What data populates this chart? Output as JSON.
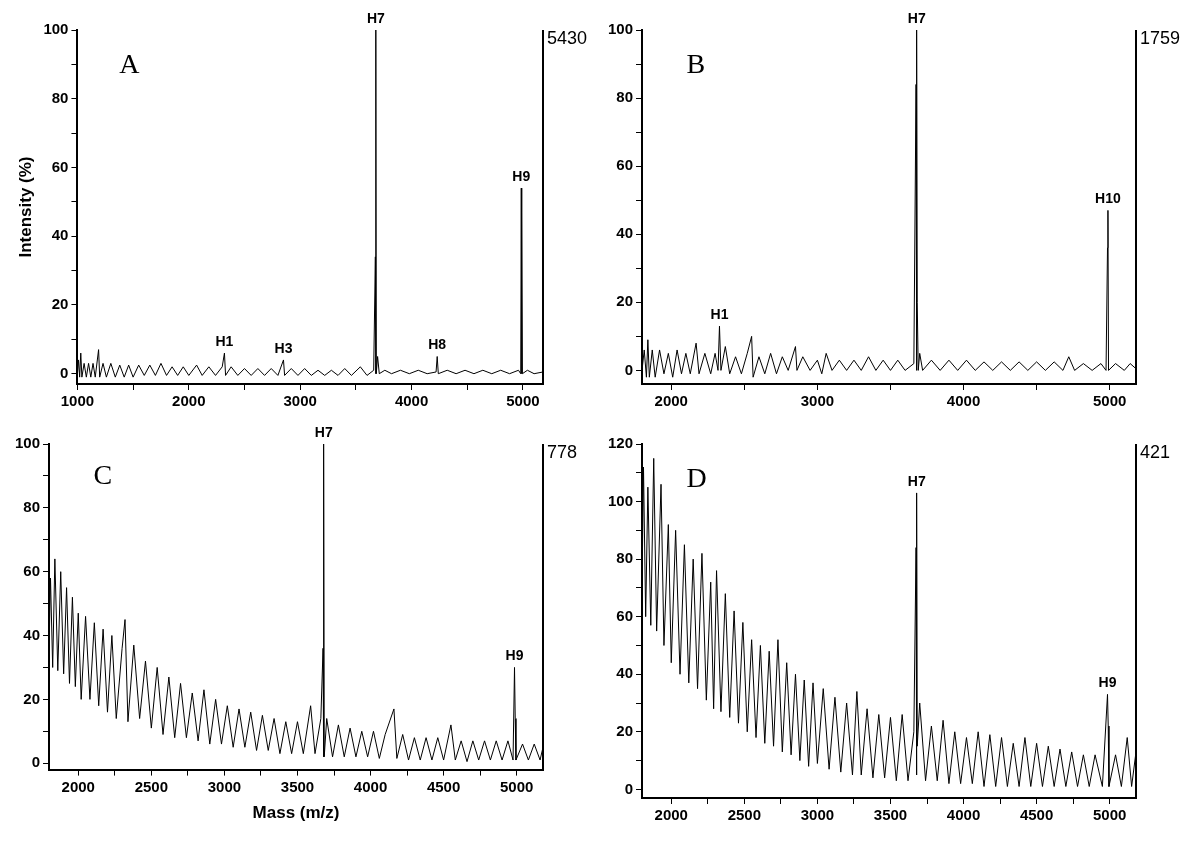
{
  "chart_data": [
    {
      "type": "line",
      "ylabel": "Intensity (%)",
      "annotations": [
        "A",
        "5430",
        {
          "text": "H1",
          "x": 2320,
          "y": 6
        },
        {
          "text": "H3",
          "x": 2850,
          "y": 4
        },
        {
          "text": "H7",
          "x": 3680,
          "y": 100
        },
        {
          "text": "H8",
          "x": 4230,
          "y": 5
        },
        {
          "text": "H9",
          "x": 4985,
          "y": 54
        }
      ],
      "color": "#000000",
      "xlim": [
        1000,
        5180
      ],
      "ylim": [
        -3,
        100
      ],
      "xticks": [
        1000,
        {
          "value": 1500,
          "label": null
        },
        2000,
        {
          "value": 2500,
          "label": null
        },
        3000,
        {
          "value": 3500,
          "label": null
        },
        4000,
        {
          "value": 4500,
          "label": null
        },
        5000
      ],
      "yticks": [
        0,
        {
          "value": 10,
          "label": null
        },
        20,
        {
          "value": 30,
          "label": null
        },
        40,
        {
          "value": 50,
          "label": null
        },
        60,
        {
          "value": 70,
          "label": null
        },
        80,
        {
          "value": 90,
          "label": null
        },
        100
      ],
      "x": [
        1000,
        1010,
        1020,
        1030,
        1040,
        1060,
        1080,
        1100,
        1120,
        1140,
        1160,
        1190,
        1200,
        1230,
        1260,
        1300,
        1340,
        1380,
        1420,
        1460,
        1500,
        1550,
        1600,
        1650,
        1700,
        1750,
        1800,
        1850,
        1900,
        1950,
        2000,
        2070,
        2120,
        2180,
        2240,
        2300,
        2320,
        2330,
        2380,
        2440,
        2500,
        2560,
        2620,
        2680,
        2740,
        2800,
        2850,
        2860,
        2920,
        2980,
        3040,
        3100,
        3160,
        3220,
        3280,
        3340,
        3400,
        3460,
        3540,
        3600,
        3660,
        3675,
        3678,
        3680,
        3683,
        3695,
        3710,
        3760,
        3820,
        3900,
        3980,
        4060,
        4140,
        4220,
        4230,
        4240,
        4320,
        4400,
        4480,
        4560,
        4640,
        4720,
        4800,
        4880,
        4960,
        4980,
        4985,
        4988,
        4990,
        4995,
        5040,
        5100,
        5180
      ],
      "values": [
        0,
        4,
        -1,
        6,
        -1,
        3,
        -1,
        3,
        -1,
        3,
        -1,
        7,
        -1,
        3,
        -1,
        3,
        -1,
        2.5,
        -1,
        2.5,
        -1,
        2.5,
        -0.5,
        2.5,
        -0.5,
        3,
        -0.5,
        2,
        -0.5,
        2,
        -0.5,
        2.5,
        -0.5,
        2,
        -0.5,
        2,
        6,
        -0.5,
        2,
        -0.5,
        1.5,
        -0.5,
        1.5,
        -0.5,
        1.5,
        -0.5,
        4,
        -0.5,
        1.5,
        -0.5,
        1.5,
        -0.5,
        1,
        -0.5,
        1,
        -0.5,
        1.5,
        -0.5,
        2,
        -0.5,
        1,
        34,
        0,
        100,
        0,
        5,
        0,
        1,
        0,
        1,
        0,
        1,
        0,
        0.5,
        5,
        0,
        1,
        0,
        1,
        0,
        1,
        0,
        1,
        0,
        1,
        0,
        54,
        0,
        47,
        0,
        1,
        0,
        0.5
      ]
    },
    {
      "type": "line",
      "annotations": [
        "B",
        "1759",
        {
          "text": "H1",
          "x": 2330,
          "y": 13
        },
        {
          "text": "H7",
          "x": 3680,
          "y": 100
        },
        {
          "text": "H10",
          "x": 4988,
          "y": 47
        }
      ],
      "color": "#000000",
      "xlim": [
        1800,
        5180
      ],
      "ylim": [
        -4,
        100
      ],
      "xticks": [
        2000,
        {
          "value": 2500,
          "label": null
        },
        3000,
        {
          "value": 3500,
          "label": null
        },
        4000,
        {
          "value": 4500,
          "label": null
        },
        5000
      ],
      "yticks": [
        0,
        {
          "value": 10,
          "label": null
        },
        20,
        {
          "value": 30,
          "label": null
        },
        40,
        {
          "value": 50,
          "label": null
        },
        60,
        {
          "value": 70,
          "label": null
        },
        80,
        {
          "value": 90,
          "label": null
        },
        100
      ],
      "x": [
        1800,
        1815,
        1830,
        1840,
        1850,
        1870,
        1890,
        1920,
        1950,
        1980,
        2010,
        2040,
        2070,
        2100,
        2130,
        2170,
        2190,
        2230,
        2270,
        2300,
        2320,
        2330,
        2340,
        2370,
        2400,
        2440,
        2480,
        2520,
        2550,
        2560,
        2600,
        2640,
        2680,
        2720,
        2760,
        2800,
        2850,
        2860,
        2900,
        2950,
        3000,
        3030,
        3060,
        3100,
        3150,
        3200,
        3250,
        3300,
        3350,
        3400,
        3450,
        3500,
        3550,
        3600,
        3660,
        3675,
        3678,
        3680,
        3683,
        3690,
        3700,
        3720,
        3780,
        3840,
        3900,
        3960,
        4020,
        4080,
        4140,
        4200,
        4260,
        4320,
        4380,
        4440,
        4500,
        4560,
        4620,
        4680,
        4720,
        4760,
        4820,
        4880,
        4940,
        4975,
        4985,
        4988,
        4992,
        5040,
        5100,
        5140,
        5180
      ],
      "values": [
        0,
        6,
        -2,
        9,
        -2,
        6,
        -2,
        6,
        -1,
        5,
        -2,
        6,
        -1,
        5,
        -1,
        8,
        -1,
        5,
        -1,
        5,
        0,
        13,
        0,
        7,
        -1,
        4,
        -1,
        5,
        10,
        -2,
        4,
        -1,
        5,
        -1,
        4,
        0,
        7,
        0,
        4,
        0,
        3,
        -1,
        5,
        0,
        3,
        0,
        3,
        0,
        4,
        0,
        3,
        0,
        3,
        0,
        2,
        84,
        0,
        100,
        20,
        0,
        5,
        0,
        3,
        0,
        3,
        0,
        3,
        0,
        2.5,
        0,
        2.5,
        0,
        2.5,
        0,
        2.5,
        0,
        2.5,
        0,
        4,
        0,
        2,
        0,
        2,
        0,
        36,
        47,
        0,
        2,
        0,
        2,
        0.5
      ]
    },
    {
      "type": "line",
      "xlabel": "Mass (m/z)",
      "annotations": [
        "C",
        "778",
        {
          "text": "H7",
          "x": 3680,
          "y": 100
        },
        {
          "text": "H9",
          "x": 4985,
          "y": 30
        }
      ],
      "color": "#000000",
      "xlim": [
        1800,
        5180
      ],
      "ylim": [
        -2,
        100
      ],
      "xticks": [
        2000,
        {
          "value": 2250,
          "label": null
        },
        2500,
        {
          "value": 2750,
          "label": null
        },
        3000,
        {
          "value": 3250,
          "label": null
        },
        3500,
        {
          "value": 3750,
          "label": null
        },
        4000,
        {
          "value": 4250,
          "label": null
        },
        4500,
        {
          "value": 4750,
          "label": null
        },
        5000
      ],
      "yticks": [
        0,
        {
          "value": 10,
          "label": null
        },
        20,
        {
          "value": 30,
          "label": null
        },
        40,
        {
          "value": 50,
          "label": null
        },
        60,
        {
          "value": 70,
          "label": null
        },
        80,
        {
          "value": 90,
          "label": null
        },
        100
      ],
      "x": [
        1800,
        1810,
        1825,
        1840,
        1860,
        1880,
        1900,
        1920,
        1940,
        1960,
        1980,
        2000,
        2020,
        2050,
        2080,
        2110,
        2140,
        2170,
        2200,
        2230,
        2260,
        2300,
        2320,
        2340,
        2380,
        2420,
        2460,
        2500,
        2540,
        2580,
        2620,
        2660,
        2700,
        2740,
        2780,
        2820,
        2860,
        2900,
        2940,
        2980,
        3020,
        3060,
        3100,
        3140,
        3180,
        3220,
        3260,
        3300,
        3340,
        3380,
        3420,
        3460,
        3500,
        3540,
        3590,
        3620,
        3660,
        3675,
        3678,
        3680,
        3683,
        3700,
        3740,
        3780,
        3820,
        3860,
        3900,
        3940,
        3980,
        4020,
        4060,
        4100,
        4160,
        4180,
        4220,
        4260,
        4300,
        4340,
        4380,
        4420,
        4460,
        4500,
        4550,
        4580,
        4620,
        4660,
        4700,
        4740,
        4780,
        4820,
        4860,
        4900,
        4940,
        4975,
        4985,
        4990,
        4995,
        5040,
        5080,
        5120,
        5160,
        5180
      ],
      "values": [
        35,
        58,
        30,
        64,
        29,
        60,
        28,
        55,
        25,
        52,
        24,
        47,
        20,
        46,
        20,
        44,
        18,
        42,
        16,
        40,
        14,
        36,
        45,
        13,
        37,
        14,
        32,
        11,
        30,
        9,
        27,
        8,
        25,
        8,
        22,
        7,
        23,
        6,
        20,
        6,
        18,
        5,
        17,
        5,
        16,
        4,
        15,
        4,
        14,
        3,
        13,
        3,
        13,
        3,
        18,
        3,
        14,
        36,
        2,
        100,
        2,
        14,
        2,
        12,
        2,
        11,
        2,
        10,
        2,
        10,
        1.5,
        9,
        17,
        1.5,
        9,
        1,
        8,
        1,
        8,
        1,
        8,
        1,
        12,
        1,
        7,
        0.5,
        7,
        1,
        7,
        1,
        7,
        1,
        7,
        1,
        30,
        14,
        1,
        6,
        1,
        6,
        1,
        5
      ]
    },
    {
      "type": "line",
      "annotations": [
        "D",
        "421",
        {
          "text": "H7",
          "x": 3680,
          "y": 103
        },
        {
          "text": "H9",
          "x": 4985,
          "y": 33
        }
      ],
      "color": "#000000",
      "xlim": [
        1800,
        5180
      ],
      "ylim": [
        -3,
        120
      ],
      "xticks": [
        2000,
        {
          "value": 2250,
          "label": null
        },
        2500,
        {
          "value": 2750,
          "label": null
        },
        3000,
        {
          "value": 3250,
          "label": null
        },
        3500,
        {
          "value": 3750,
          "label": null
        },
        4000,
        {
          "value": 4250,
          "label": null
        },
        4500,
        {
          "value": 4750,
          "label": null
        },
        5000
      ],
      "yticks": [
        0,
        {
          "value": 10,
          "label": null
        },
        20,
        {
          "value": 30,
          "label": null
        },
        40,
        {
          "value": 50,
          "label": null
        },
        60,
        {
          "value": 70,
          "label": null
        },
        80,
        {
          "value": 90,
          "label": null
        },
        100,
        {
          "value": 110,
          "label": null
        },
        120
      ],
      "x": [
        1800,
        1810,
        1825,
        1840,
        1860,
        1880,
        1900,
        1930,
        1950,
        1980,
        2000,
        2030,
        2060,
        2090,
        2120,
        2150,
        2180,
        2210,
        2240,
        2270,
        2290,
        2310,
        2340,
        2370,
        2400,
        2430,
        2460,
        2490,
        2520,
        2550,
        2580,
        2610,
        2640,
        2670,
        2700,
        2730,
        2760,
        2790,
        2820,
        2850,
        2880,
        2910,
        2940,
        2970,
        3000,
        3040,
        3080,
        3120,
        3160,
        3200,
        3240,
        3270,
        3300,
        3340,
        3380,
        3420,
        3460,
        3500,
        3540,
        3580,
        3620,
        3660,
        3675,
        3678,
        3680,
        3683,
        3700,
        3740,
        3780,
        3820,
        3860,
        3900,
        3940,
        3980,
        4020,
        4060,
        4100,
        4140,
        4180,
        4220,
        4260,
        4300,
        4340,
        4380,
        4420,
        4460,
        4500,
        4540,
        4580,
        4620,
        4660,
        4700,
        4740,
        4780,
        4820,
        4860,
        4900,
        4950,
        4985,
        4990,
        4995,
        5040,
        5080,
        5120,
        5150,
        5180
      ],
      "values": [
        70,
        112,
        60,
        105,
        57,
        115,
        55,
        106,
        50,
        92,
        44,
        90,
        40,
        85,
        37,
        80,
        35,
        82,
        31,
        72,
        28,
        76,
        27,
        68,
        25,
        62,
        23,
        58,
        20,
        52,
        18,
        50,
        16,
        48,
        15,
        52,
        13,
        44,
        12,
        40,
        10,
        38,
        8,
        37,
        9,
        35,
        7,
        32,
        6,
        30,
        5,
        34,
        5,
        28,
        4,
        26,
        4,
        25,
        3,
        26,
        3,
        20,
        84,
        5,
        103,
        15,
        30,
        3,
        22,
        3,
        24,
        2,
        20,
        2,
        18,
        2,
        20,
        1,
        19,
        1,
        18,
        1,
        16,
        1,
        18,
        1,
        16,
        1,
        15,
        1,
        14,
        1,
        13,
        1,
        12,
        1,
        12,
        1,
        33,
        22,
        1,
        12,
        1,
        18,
        1,
        13
      ]
    }
  ]
}
